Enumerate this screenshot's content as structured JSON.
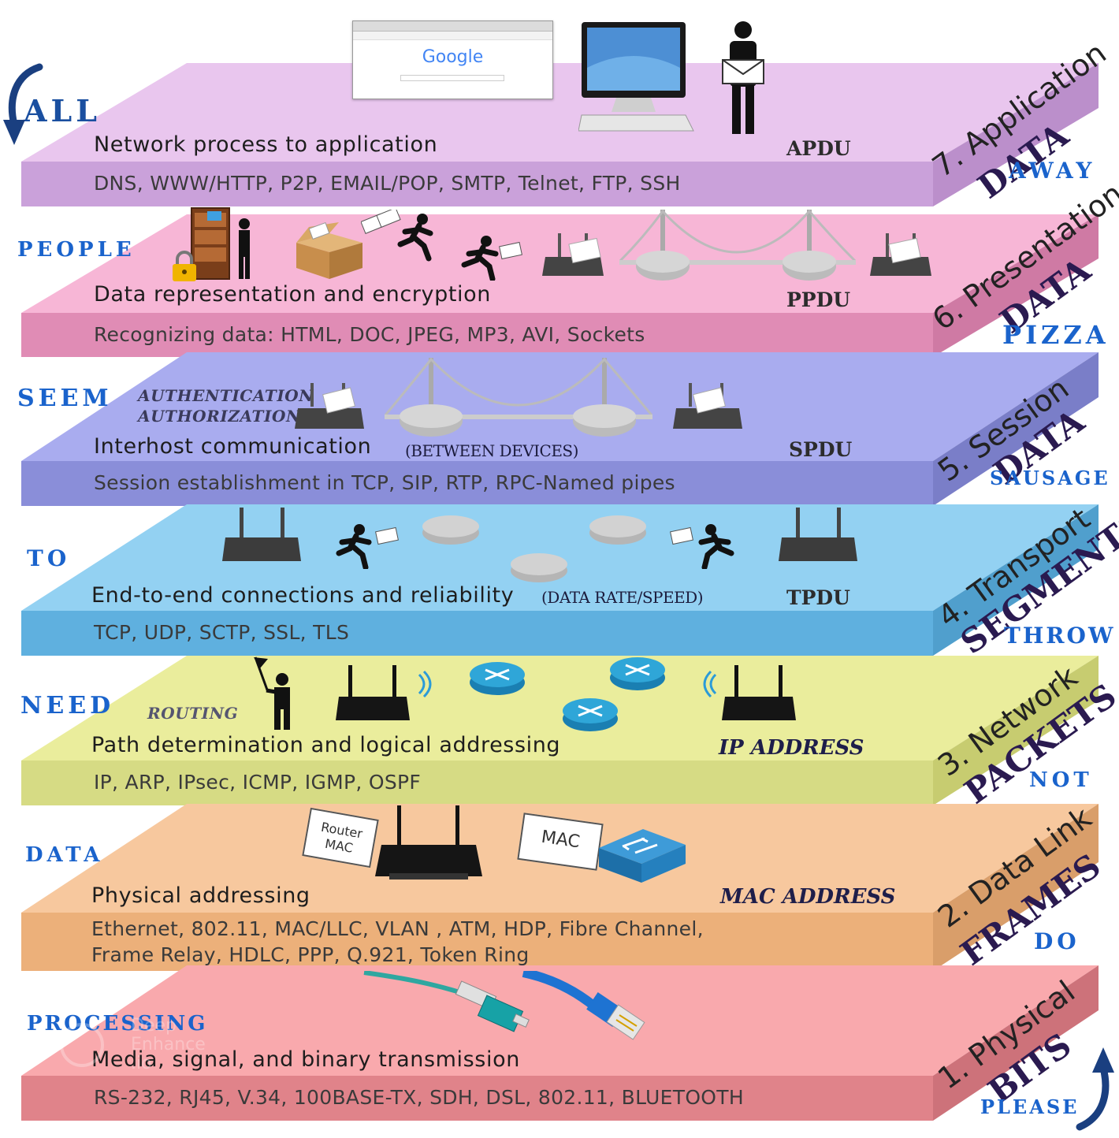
{
  "layers": [
    {
      "number": "7",
      "name": "7. Application",
      "unit": "DATA",
      "description": "Network process to application",
      "protocols": [
        "DNS, WWW/HTTP, P2P, EMAIL/POP, SMTP, Telnet, FTP, SSH"
      ],
      "pdu": "APDU",
      "colors": {
        "top": "#e9c6ee",
        "front": "#caa1da",
        "side": "#bb8fcb"
      }
    },
    {
      "number": "6",
      "name": "6. Presentation",
      "unit": "DATA",
      "description": "Data representation and encryption",
      "protocols": [
        "Recognizing data: HTML, DOC, JPEG, MP3, AVI, Sockets"
      ],
      "pdu": "PPDU",
      "colors": {
        "top": "#f7b6d6",
        "front": "#e08cb5",
        "side": "#cf7aa4"
      }
    },
    {
      "number": "5",
      "name": "5. Session",
      "unit": "DATA",
      "description": "Interhost communication",
      "protocols": [
        "Session establishment in TCP, SIP, RTP, RPC-Named pipes"
      ],
      "pdu": "SPDU",
      "colors": {
        "top": "#a9acef",
        "front": "#8a8ed9",
        "side": "#7a7ec8"
      }
    },
    {
      "number": "4",
      "name": "4. Transport",
      "unit": "SEGMENTS",
      "description": "End-to-end connections and reliability",
      "protocols": [
        "TCP, UDP, SCTP, SSL, TLS"
      ],
      "pdu": "TPDU",
      "colors": {
        "top": "#93d1f2",
        "front": "#5fb0df",
        "side": "#509fcd"
      }
    },
    {
      "number": "3",
      "name": "3. Network",
      "unit": "PACKETS",
      "description": "Path determination and logical addressing",
      "protocols": [
        "IP, ARP, IPsec, ICMP, IGMP, OSPF"
      ],
      "pdu": "IP ADDRESS",
      "colors": {
        "top": "#eaed9c",
        "front": "#d6db84",
        "side": "#c7cc70"
      }
    },
    {
      "number": "2",
      "name": "2. Data Link",
      "unit": "FRAMES",
      "description": "Physical addressing",
      "protocols": [
        "Ethernet, 802.11, MAC/LLC, VLAN , ATM, HDP, Fibre Channel,",
        "Frame Relay, HDLC,  PPP, Q.921, Token Ring"
      ],
      "pdu": "MAC ADDRESS",
      "colors": {
        "top": "#f7c89e",
        "front": "#ecb07a",
        "side": "#d99e6a"
      }
    },
    {
      "number": "1",
      "name": "1. Physical",
      "unit": "BITS",
      "description": "Media, signal, and binary transmission",
      "protocols": [
        "RS-232, RJ45, V.34, 100BASE-TX, SDH, DSL, 802.11, BLUETOOTH"
      ],
      "pdu": "",
      "colors": {
        "top": "#f9a9ad",
        "front": "#e0838a",
        "side": "#cd727a"
      }
    }
  ],
  "notes": {
    "authentication": "AUTHENTICATION",
    "authorization": "AUTHORIZATION",
    "between_devices": "(BETWEEN DEVICES)",
    "data_rate": "(DATA RATE/SPEED)",
    "routing": "ROUTING"
  },
  "mnemonics": {
    "left": [
      "ALL",
      "PEOPLE",
      "SEEM",
      "TO",
      "NEED",
      "DATA",
      "PROCESSING"
    ],
    "right": [
      "AWAY",
      "PIZZA",
      "SAUSAGE",
      "THROW",
      "NOT",
      "DO",
      "PLEASE"
    ],
    "color": "#1a63cc"
  },
  "browser": {
    "logo": "Google"
  },
  "tags": {
    "router_mac": "Router MAC",
    "mac": "MAC"
  },
  "icons": [
    "browser-window-icon",
    "desktop-computer-icon",
    "person-with-envelope-icon",
    "bookshelf-person-icon",
    "padlock-icon",
    "cardboard-box-icon",
    "running-courier-icon",
    "router-icon",
    "bridge-icon",
    "switch-icon",
    "flag-person-icon",
    "wifi-signal-icon",
    "fiber-cable-icon",
    "ethernet-cable-icon",
    "arrow-down-icon",
    "arrow-up-icon",
    "watermark-icon"
  ],
  "watermark": {
    "line1": "Deep",
    "line2": "Enhance",
    "line3": ".io"
  }
}
